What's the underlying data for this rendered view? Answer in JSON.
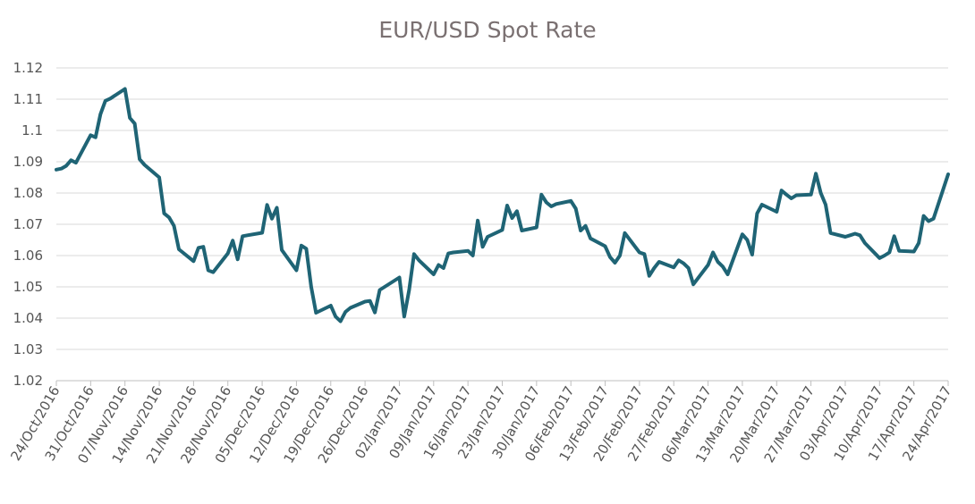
{
  "chart_data": {
    "type": "line",
    "title": "EUR/USD Spot Rate",
    "xlabel": "",
    "ylabel": "",
    "ylim": [
      1.02,
      1.12
    ],
    "y_ticks": [
      "1.02",
      "1.03",
      "1.04",
      "1.05",
      "1.06",
      "1.07",
      "1.08",
      "1.09",
      "1.1",
      "1.11",
      "1.12"
    ],
    "x_ticks": [
      "24/Oct/2016",
      "31/Oct/2016",
      "07/Nov/2016",
      "14/Nov/2016",
      "21/Nov/2016",
      "28/Nov/2016",
      "05/Dec/2016",
      "12/Dec/2016",
      "19/Dec/2016",
      "26/Dec/2016",
      "02/Jan/2017",
      "09/Jan/2017",
      "16/Jan/2017",
      "23/Jan/2017",
      "30/Jan/2017",
      "06/Feb/2017",
      "13/Feb/2017",
      "20/Feb/2017",
      "27/Feb/2017",
      "06/Mar/2017",
      "13/Mar/2017",
      "20/Mar/2017",
      "27/Mar/2017",
      "03/Apr/2017",
      "10/Apr/2017",
      "17/Apr/2017",
      "24/Apr/2017"
    ],
    "grid": "horizontal",
    "line_color": "#1f6475",
    "series": [
      {
        "values": [
          [
            "2016-10-24",
            1.0875
          ],
          [
            "2016-10-25",
            1.0878
          ],
          [
            "2016-10-26",
            1.0887
          ],
          [
            "2016-10-27",
            1.0905
          ],
          [
            "2016-10-28",
            1.0897
          ],
          [
            "2016-10-31",
            1.0985
          ],
          [
            "2016-11-01",
            1.0978
          ],
          [
            "2016-11-02",
            1.1052
          ],
          [
            "2016-11-03",
            1.1095
          ],
          [
            "2016-11-04",
            1.1102
          ],
          [
            "2016-11-07",
            1.1133
          ],
          [
            "2016-11-08",
            1.104
          ],
          [
            "2016-11-09",
            1.1022
          ],
          [
            "2016-11-10",
            1.0908
          ],
          [
            "2016-11-11",
            1.089
          ],
          [
            "2016-11-14",
            1.085
          ],
          [
            "2016-11-15",
            1.0735
          ],
          [
            "2016-11-16",
            1.0722
          ],
          [
            "2016-11-17",
            1.0695
          ],
          [
            "2016-11-18",
            1.062
          ],
          [
            "2016-11-21",
            1.0582
          ],
          [
            "2016-11-22",
            1.0625
          ],
          [
            "2016-11-23",
            1.0628
          ],
          [
            "2016-11-24",
            1.0553
          ],
          [
            "2016-11-25",
            1.0547
          ],
          [
            "2016-11-28",
            1.0607
          ],
          [
            "2016-11-29",
            1.0648
          ],
          [
            "2016-11-30",
            1.0588
          ],
          [
            "2016-12-01",
            1.0662
          ],
          [
            "2016-12-02",
            1.0665
          ],
          [
            "2016-12-05",
            1.0673
          ],
          [
            "2016-12-06",
            1.0762
          ],
          [
            "2016-12-07",
            1.0718
          ],
          [
            "2016-12-08",
            1.0753
          ],
          [
            "2016-12-09",
            1.0618
          ],
          [
            "2016-12-12",
            1.0553
          ],
          [
            "2016-12-13",
            1.0632
          ],
          [
            "2016-12-14",
            1.0622
          ],
          [
            "2016-12-15",
            1.05
          ],
          [
            "2016-12-16",
            1.0417
          ],
          [
            "2016-12-19",
            1.044
          ],
          [
            "2016-12-20",
            1.0405
          ],
          [
            "2016-12-21",
            1.039
          ],
          [
            "2016-12-22",
            1.042
          ],
          [
            "2016-12-23",
            1.0433
          ],
          [
            "2016-12-26",
            1.0453
          ],
          [
            "2016-12-27",
            1.0455
          ],
          [
            "2016-12-28",
            1.0418
          ],
          [
            "2016-12-29",
            1.049
          ],
          [
            "2016-12-30",
            1.05
          ],
          [
            "2017-01-02",
            1.053
          ],
          [
            "2017-01-03",
            1.0405
          ],
          [
            "2017-01-04",
            1.049
          ],
          [
            "2017-01-05",
            1.0605
          ],
          [
            "2017-01-06",
            1.0585
          ],
          [
            "2017-01-09",
            1.054
          ],
          [
            "2017-01-10",
            1.057
          ],
          [
            "2017-01-11",
            1.056
          ],
          [
            "2017-01-12",
            1.0607
          ],
          [
            "2017-01-13",
            1.061
          ],
          [
            "2017-01-16",
            1.0615
          ],
          [
            "2017-01-17",
            1.06
          ],
          [
            "2017-01-18",
            1.0712
          ],
          [
            "2017-01-19",
            1.0628
          ],
          [
            "2017-01-20",
            1.066
          ],
          [
            "2017-01-23",
            1.0682
          ],
          [
            "2017-01-24",
            1.076
          ],
          [
            "2017-01-25",
            1.072
          ],
          [
            "2017-01-26",
            1.0742
          ],
          [
            "2017-01-27",
            1.068
          ],
          [
            "2017-01-30",
            1.069
          ],
          [
            "2017-01-31",
            1.0795
          ],
          [
            "2017-02-01",
            1.077
          ],
          [
            "2017-02-02",
            1.0757
          ],
          [
            "2017-02-03",
            1.0765
          ],
          [
            "2017-02-06",
            1.0775
          ],
          [
            "2017-02-07",
            1.075
          ],
          [
            "2017-02-08",
            1.068
          ],
          [
            "2017-02-09",
            1.0695
          ],
          [
            "2017-02-10",
            1.0655
          ],
          [
            "2017-02-13",
            1.063
          ],
          [
            "2017-02-14",
            1.0595
          ],
          [
            "2017-02-15",
            1.0577
          ],
          [
            "2017-02-16",
            1.06
          ],
          [
            "2017-02-17",
            1.0672
          ],
          [
            "2017-02-20",
            1.061
          ],
          [
            "2017-02-21",
            1.0605
          ],
          [
            "2017-02-22",
            1.0535
          ],
          [
            "2017-02-23",
            1.056
          ],
          [
            "2017-02-24",
            1.058
          ],
          [
            "2017-02-27",
            1.0562
          ],
          [
            "2017-02-28",
            1.0585
          ],
          [
            "2017-03-01",
            1.0575
          ],
          [
            "2017-03-02",
            1.056
          ],
          [
            "2017-03-03",
            1.0508
          ],
          [
            "2017-03-06",
            1.057
          ],
          [
            "2017-03-07",
            1.061
          ],
          [
            "2017-03-08",
            1.058
          ],
          [
            "2017-03-09",
            1.0565
          ],
          [
            "2017-03-10",
            1.054
          ],
          [
            "2017-03-13",
            1.0668
          ],
          [
            "2017-03-14",
            1.065
          ],
          [
            "2017-03-15",
            1.0603
          ],
          [
            "2017-03-16",
            1.0735
          ],
          [
            "2017-03-17",
            1.0763
          ],
          [
            "2017-03-20",
            1.074
          ],
          [
            "2017-03-21",
            1.0808
          ],
          [
            "2017-03-22",
            1.0795
          ],
          [
            "2017-03-23",
            1.0783
          ],
          [
            "2017-03-24",
            1.0793
          ],
          [
            "2017-03-27",
            1.0795
          ],
          [
            "2017-03-28",
            1.0862
          ],
          [
            "2017-03-29",
            1.08
          ],
          [
            "2017-03-30",
            1.0763
          ],
          [
            "2017-03-31",
            1.0672
          ],
          [
            "2017-04-03",
            1.066
          ],
          [
            "2017-04-04",
            1.0665
          ],
          [
            "2017-04-05",
            1.067
          ],
          [
            "2017-04-06",
            1.0665
          ],
          [
            "2017-04-07",
            1.064
          ],
          [
            "2017-04-10",
            1.0592
          ],
          [
            "2017-04-11",
            1.06
          ],
          [
            "2017-04-12",
            1.061
          ],
          [
            "2017-04-13",
            1.0662
          ],
          [
            "2017-04-14",
            1.0615
          ],
          [
            "2017-04-17",
            1.0613
          ],
          [
            "2017-04-18",
            1.064
          ],
          [
            "2017-04-19",
            1.0727
          ],
          [
            "2017-04-20",
            1.071
          ],
          [
            "2017-04-21",
            1.0718
          ],
          [
            "2017-04-24",
            1.086
          ]
        ]
      }
    ]
  }
}
